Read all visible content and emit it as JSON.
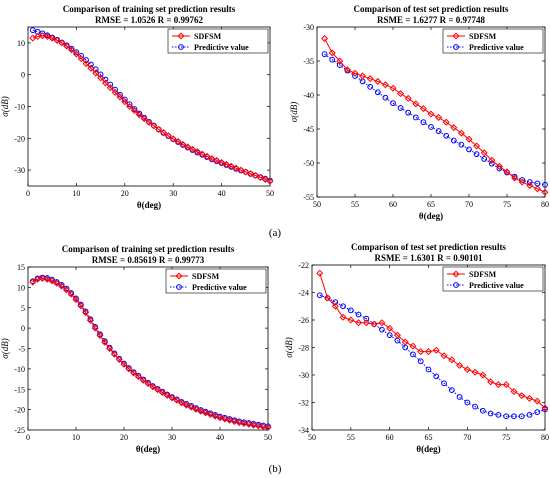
{
  "panel_labels": [
    "(a)",
    "(b)"
  ],
  "colors": {
    "actual": "#ff0000",
    "predicted": "#0000ff"
  },
  "chart_data": [
    {
      "type": "line",
      "panel": "(a)",
      "title": "Comparison of training set prediction results",
      "subtitle": "RMSE = 1.0526   R = 0.99762",
      "xlabel": "θ(deg)",
      "ylabel": "σ(dB)",
      "xlim": [
        0,
        50
      ],
      "ylim": [
        -35,
        15
      ],
      "xticks": [
        0,
        10,
        20,
        30,
        40,
        50
      ],
      "yticks": [
        -30,
        -20,
        -10,
        0,
        10
      ],
      "legend_position": "top-right",
      "grid": false,
      "series": [
        {
          "name": "SDFSM",
          "color": "#ff0000",
          "marker": "diamond",
          "line": "solid",
          "x": [
            1,
            2,
            3,
            4,
            5,
            6,
            7,
            8,
            9,
            10,
            11,
            12,
            13,
            14,
            15,
            16,
            17,
            18,
            19,
            20,
            21,
            22,
            23,
            24,
            25,
            26,
            27,
            28,
            29,
            30,
            31,
            32,
            33,
            34,
            35,
            36,
            37,
            38,
            39,
            40,
            41,
            42,
            43,
            44,
            45,
            46,
            47,
            48,
            49,
            50
          ],
          "y": [
            11.5,
            12,
            12.3,
            12,
            11.5,
            10.8,
            10,
            9,
            7.8,
            6.5,
            5,
            3.5,
            2,
            0.5,
            -1,
            -2.6,
            -4.1,
            -5.6,
            -7,
            -8.5,
            -10,
            -11.3,
            -12.6,
            -13.8,
            -15,
            -16.1,
            -17.2,
            -18.2,
            -19.2,
            -20.2,
            -21,
            -21.9,
            -22.7,
            -23.5,
            -24.2,
            -25,
            -25.7,
            -26.4,
            -27,
            -27.6,
            -28.2,
            -28.8,
            -29.4,
            -30,
            -30.6,
            -31.1,
            -31.7,
            -32.3,
            -32.9,
            -33.5
          ]
        },
        {
          "name": "Predictive value",
          "color": "#0000ff",
          "marker": "circle",
          "line": "dotted",
          "x": [
            1,
            2,
            3,
            4,
            5,
            6,
            7,
            8,
            9,
            10,
            11,
            12,
            13,
            14,
            15,
            16,
            17,
            18,
            19,
            20,
            21,
            22,
            23,
            24,
            25,
            26,
            27,
            28,
            29,
            30,
            31,
            32,
            33,
            34,
            35,
            36,
            37,
            38,
            39,
            40,
            41,
            42,
            43,
            44,
            45,
            46,
            47,
            48,
            49,
            50
          ],
          "y": [
            14,
            13.5,
            13,
            12.4,
            11.7,
            11,
            10.1,
            9.2,
            8.2,
            7.1,
            5.9,
            4.6,
            3.2,
            1.7,
            0.1,
            -1.5,
            -3.1,
            -4.7,
            -6.3,
            -7.8,
            -9.3,
            -10.8,
            -12.2,
            -13.5,
            -14.8,
            -16,
            -17.2,
            -18.3,
            -19.3,
            -20.3,
            -21.2,
            -22.1,
            -22.9,
            -23.7,
            -24.5,
            -25.2,
            -25.9,
            -26.6,
            -27.2,
            -27.8,
            -28.4,
            -29,
            -29.6,
            -30.1,
            -30.6,
            -31.2,
            -31.7,
            -32.2,
            -32.7,
            -33.3
          ]
        }
      ]
    },
    {
      "type": "line",
      "panel": "(a)",
      "title": "Comparison of test set prediction results",
      "subtitle": "RSME = 1.6277   R = 0.97748",
      "xlabel": "θ(deg)",
      "ylabel": "σ(dB)",
      "xlim": [
        50,
        80
      ],
      "ylim": [
        -55,
        -30
      ],
      "xticks": [
        50,
        55,
        60,
        65,
        70,
        75,
        80
      ],
      "yticks": [
        -55,
        -50,
        -45,
        -40,
        -35,
        -30
      ],
      "legend_position": "top-right",
      "grid": false,
      "series": [
        {
          "name": "SDFSM",
          "color": "#ff0000",
          "marker": "diamond",
          "line": "solid",
          "x": [
            51,
            52,
            53,
            54,
            55,
            56,
            57,
            58,
            59,
            60,
            61,
            62,
            63,
            64,
            65,
            66,
            67,
            68,
            69,
            70,
            71,
            72,
            73,
            74,
            75,
            76,
            77,
            78,
            79,
            80
          ],
          "y": [
            -31.7,
            -33.8,
            -35,
            -36.3,
            -36.8,
            -37.2,
            -37.6,
            -38,
            -38.5,
            -39,
            -39.8,
            -40.5,
            -41.3,
            -42,
            -42.8,
            -43.3,
            -44,
            -44.8,
            -45.6,
            -46.5,
            -47.5,
            -48.5,
            -49.6,
            -50.5,
            -51.3,
            -52.2,
            -52.8,
            -53.3,
            -53.8,
            -54.3
          ]
        },
        {
          "name": "Predictive value",
          "color": "#0000ff",
          "marker": "circle",
          "line": "dotted",
          "x": [
            51,
            52,
            53,
            54,
            55,
            56,
            57,
            58,
            59,
            60,
            61,
            62,
            63,
            64,
            65,
            66,
            67,
            68,
            69,
            70,
            71,
            72,
            73,
            74,
            75,
            76,
            77,
            78,
            79,
            80
          ],
          "y": [
            -34,
            -34.8,
            -35.6,
            -36.4,
            -37.2,
            -38,
            -38.8,
            -39.6,
            -40.4,
            -41.2,
            -41.9,
            -42.6,
            -43.3,
            -44,
            -44.7,
            -45.3,
            -46,
            -46.7,
            -47.3,
            -48,
            -48.7,
            -49.4,
            -50.1,
            -50.8,
            -51.4,
            -52,
            -52.5,
            -52.8,
            -53,
            -53.2
          ]
        }
      ]
    },
    {
      "type": "line",
      "panel": "(b)",
      "title": "Comparison of training set prediction results",
      "subtitle": "RMSE = 0.85619   R = 0.99773",
      "xlabel": "θ(deg)",
      "ylabel": "σ(dB)",
      "xlim": [
        0,
        50
      ],
      "ylim": [
        -25,
        15
      ],
      "xticks": [
        0,
        10,
        20,
        30,
        40,
        50
      ],
      "yticks": [
        -25,
        -20,
        -15,
        -10,
        -5,
        0,
        5,
        10,
        15
      ],
      "legend_position": "top-right",
      "grid": false,
      "series": [
        {
          "name": "SDFSM",
          "color": "#ff0000",
          "marker": "diamond",
          "line": "solid",
          "x": [
            1,
            2,
            3,
            4,
            5,
            6,
            7,
            8,
            9,
            10,
            11,
            12,
            13,
            14,
            15,
            16,
            17,
            18,
            19,
            20,
            21,
            22,
            23,
            24,
            25,
            26,
            27,
            28,
            29,
            30,
            31,
            32,
            33,
            34,
            35,
            36,
            37,
            38,
            39,
            40,
            41,
            42,
            43,
            44,
            45,
            46,
            47,
            48,
            49,
            50
          ],
          "y": [
            11.3,
            12,
            12.2,
            12,
            11.6,
            11,
            10.3,
            9.4,
            8.3,
            7,
            5.5,
            3.8,
            1.9,
            0,
            -1.8,
            -3.5,
            -5,
            -6.4,
            -7.7,
            -8.9,
            -10,
            -11,
            -11.9,
            -12.8,
            -13.6,
            -14.4,
            -15.1,
            -15.8,
            -16.5,
            -17.1,
            -17.7,
            -18.3,
            -18.9,
            -19.4,
            -19.9,
            -20.4,
            -20.8,
            -21.2,
            -21.6,
            -22,
            -22.3,
            -22.6,
            -22.9,
            -23.2,
            -23.4,
            -23.6,
            -23.8,
            -24,
            -24.2,
            -24.4
          ]
        },
        {
          "name": "Predictive value",
          "color": "#0000ff",
          "marker": "circle",
          "line": "dotted",
          "x": [
            1,
            2,
            3,
            4,
            5,
            6,
            7,
            8,
            9,
            10,
            11,
            12,
            13,
            14,
            15,
            16,
            17,
            18,
            19,
            20,
            21,
            22,
            23,
            24,
            25,
            26,
            27,
            28,
            29,
            30,
            31,
            32,
            33,
            34,
            35,
            36,
            37,
            38,
            39,
            40,
            41,
            42,
            43,
            44,
            45,
            46,
            47,
            48,
            49,
            50
          ],
          "y": [
            11.5,
            12.2,
            12.4,
            12.3,
            11.9,
            11.3,
            10.6,
            9.7,
            8.6,
            7.3,
            5.8,
            4.1,
            2.2,
            0.3,
            -1.5,
            -3.2,
            -4.8,
            -6.2,
            -7.5,
            -8.7,
            -9.8,
            -10.8,
            -11.7,
            -12.6,
            -13.4,
            -14.2,
            -14.9,
            -15.6,
            -16.3,
            -16.9,
            -17.5,
            -18.1,
            -18.6,
            -19.1,
            -19.6,
            -20.1,
            -20.5,
            -20.9,
            -21.3,
            -21.7,
            -22,
            -22.3,
            -22.6,
            -22.9,
            -23.1,
            -23.3,
            -23.5,
            -23.7,
            -23.9,
            -24.1
          ]
        }
      ]
    },
    {
      "type": "line",
      "panel": "(b)",
      "title": "Comparison of test set prediction results",
      "subtitle": "RSME = 1.6301   R = 0.90101",
      "xlabel": "θ(deg)",
      "ylabel": "σ(dB)",
      "xlim": [
        50,
        80
      ],
      "ylim": [
        -34,
        -22
      ],
      "xticks": [
        50,
        55,
        60,
        65,
        70,
        75,
        80
      ],
      "yticks": [
        -34,
        -32,
        -30,
        -28,
        -26,
        -24,
        -22
      ],
      "legend_position": "top-right",
      "grid": false,
      "series": [
        {
          "name": "SDFSM",
          "color": "#ff0000",
          "marker": "diamond",
          "line": "solid",
          "x": [
            51,
            52,
            53,
            54,
            55,
            56,
            57,
            58,
            59,
            60,
            61,
            62,
            63,
            64,
            65,
            66,
            67,
            68,
            69,
            70,
            71,
            72,
            73,
            74,
            75,
            76,
            77,
            78,
            79,
            80
          ],
          "y": [
            -22.6,
            -24.4,
            -25,
            -25.8,
            -26,
            -26.2,
            -26.2,
            -26.3,
            -26.2,
            -26.6,
            -27.1,
            -27.6,
            -27.9,
            -28.3,
            -28.3,
            -28.2,
            -28.6,
            -28.9,
            -29.3,
            -29.6,
            -29.8,
            -30,
            -30.5,
            -30.7,
            -30.7,
            -31.2,
            -31.5,
            -31.7,
            -31.9,
            -32.4
          ]
        },
        {
          "name": "Predictive value",
          "color": "#0000ff",
          "marker": "circle",
          "line": "dotted",
          "x": [
            51,
            52,
            53,
            54,
            55,
            56,
            57,
            58,
            59,
            60,
            61,
            62,
            63,
            64,
            65,
            66,
            67,
            68,
            69,
            70,
            71,
            72,
            73,
            74,
            75,
            76,
            77,
            78,
            79,
            80
          ],
          "y": [
            -24.2,
            -24.4,
            -24.7,
            -25,
            -25.3,
            -25.6,
            -25.9,
            -26.3,
            -26.7,
            -27.1,
            -27.5,
            -28,
            -28.5,
            -29,
            -29.6,
            -30.1,
            -30.6,
            -31.1,
            -31.6,
            -32,
            -32.3,
            -32.6,
            -32.8,
            -32.9,
            -33,
            -33,
            -33,
            -32.9,
            -32.7,
            -32.5
          ]
        }
      ]
    }
  ]
}
